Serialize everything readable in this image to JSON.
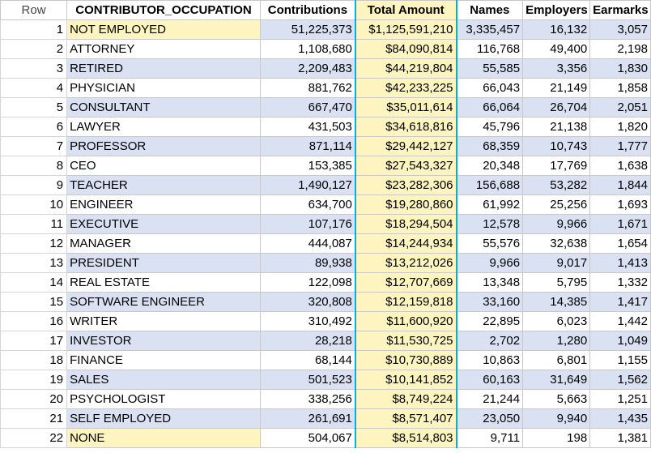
{
  "headers": {
    "row": "Row",
    "occupation": "CONTRIBUTOR_OCCUPATION",
    "contributions": "Contributions",
    "total_amount": "Total Amount",
    "names": "Names",
    "employers": "Employers",
    "earmarks": "Earmarks"
  },
  "colors": {
    "band": "#d9e1f2",
    "highlight": "#fdf4c0",
    "selection_border": "#00aee8"
  },
  "rows": [
    {
      "row": "1",
      "occupation": "NOT EMPLOYED",
      "contributions": "51,225,373",
      "total_amount": "$1,125,591,210",
      "names": "3,335,457",
      "employers": "16,132",
      "earmarks": "3,057"
    },
    {
      "row": "2",
      "occupation": "ATTORNEY",
      "contributions": "1,108,680",
      "total_amount": "$84,090,814",
      "names": "116,768",
      "employers": "49,400",
      "earmarks": "2,198"
    },
    {
      "row": "3",
      "occupation": "RETIRED",
      "contributions": "2,209,483",
      "total_amount": "$44,219,804",
      "names": "55,585",
      "employers": "3,356",
      "earmarks": "1,830"
    },
    {
      "row": "4",
      "occupation": "PHYSICIAN",
      "contributions": "881,762",
      "total_amount": "$42,233,225",
      "names": "66,043",
      "employers": "21,149",
      "earmarks": "1,858"
    },
    {
      "row": "5",
      "occupation": "CONSULTANT",
      "contributions": "667,470",
      "total_amount": "$35,011,614",
      "names": "66,064",
      "employers": "26,704",
      "earmarks": "2,051"
    },
    {
      "row": "6",
      "occupation": "LAWYER",
      "contributions": "431,503",
      "total_amount": "$34,618,816",
      "names": "45,796",
      "employers": "21,138",
      "earmarks": "1,820"
    },
    {
      "row": "7",
      "occupation": "PROFESSOR",
      "contributions": "871,114",
      "total_amount": "$29,442,127",
      "names": "68,359",
      "employers": "10,743",
      "earmarks": "1,777"
    },
    {
      "row": "8",
      "occupation": "CEO",
      "contributions": "153,385",
      "total_amount": "$27,543,327",
      "names": "20,348",
      "employers": "17,769",
      "earmarks": "1,638"
    },
    {
      "row": "9",
      "occupation": "TEACHER",
      "contributions": "1,490,127",
      "total_amount": "$23,282,306",
      "names": "156,688",
      "employers": "53,282",
      "earmarks": "1,844"
    },
    {
      "row": "10",
      "occupation": "ENGINEER",
      "contributions": "634,700",
      "total_amount": "$19,280,860",
      "names": "61,992",
      "employers": "25,256",
      "earmarks": "1,693"
    },
    {
      "row": "11",
      "occupation": "EXECUTIVE",
      "contributions": "107,176",
      "total_amount": "$18,294,504",
      "names": "12,578",
      "employers": "9,966",
      "earmarks": "1,671"
    },
    {
      "row": "12",
      "occupation": "MANAGER",
      "contributions": "444,087",
      "total_amount": "$14,244,934",
      "names": "55,576",
      "employers": "32,638",
      "earmarks": "1,654"
    },
    {
      "row": "13",
      "occupation": "PRESIDENT",
      "contributions": "89,938",
      "total_amount": "$13,212,026",
      "names": "9,966",
      "employers": "9,017",
      "earmarks": "1,413"
    },
    {
      "row": "14",
      "occupation": "REAL ESTATE",
      "contributions": "122,098",
      "total_amount": "$12,707,669",
      "names": "13,348",
      "employers": "5,795",
      "earmarks": "1,332"
    },
    {
      "row": "15",
      "occupation": "SOFTWARE ENGINEER",
      "contributions": "320,808",
      "total_amount": "$12,159,818",
      "names": "33,160",
      "employers": "14,385",
      "earmarks": "1,417"
    },
    {
      "row": "16",
      "occupation": "WRITER",
      "contributions": "310,492",
      "total_amount": "$11,600,920",
      "names": "22,895",
      "employers": "6,023",
      "earmarks": "1,442"
    },
    {
      "row": "17",
      "occupation": "INVESTOR",
      "contributions": "28,218",
      "total_amount": "$11,530,725",
      "names": "2,702",
      "employers": "1,280",
      "earmarks": "1,049"
    },
    {
      "row": "18",
      "occupation": "FINANCE",
      "contributions": "68,144",
      "total_amount": "$10,730,889",
      "names": "10,863",
      "employers": "6,801",
      "earmarks": "1,155"
    },
    {
      "row": "19",
      "occupation": "SALES",
      "contributions": "501,523",
      "total_amount": "$10,141,852",
      "names": "60,163",
      "employers": "31,649",
      "earmarks": "1,562"
    },
    {
      "row": "20",
      "occupation": "PSYCHOLOGIST",
      "contributions": "338,256",
      "total_amount": "$8,749,224",
      "names": "21,244",
      "employers": "5,663",
      "earmarks": "1,251"
    },
    {
      "row": "21",
      "occupation": "SELF EMPLOYED",
      "contributions": "261,691",
      "total_amount": "$8,571,407",
      "names": "23,050",
      "employers": "9,940",
      "earmarks": "1,435"
    },
    {
      "row": "22",
      "occupation": "NONE",
      "contributions": "504,067",
      "total_amount": "$8,514,803",
      "names": "9,711",
      "employers": "198",
      "earmarks": "1,381"
    }
  ],
  "highlighted_occupation_rows": [
    1,
    22
  ]
}
